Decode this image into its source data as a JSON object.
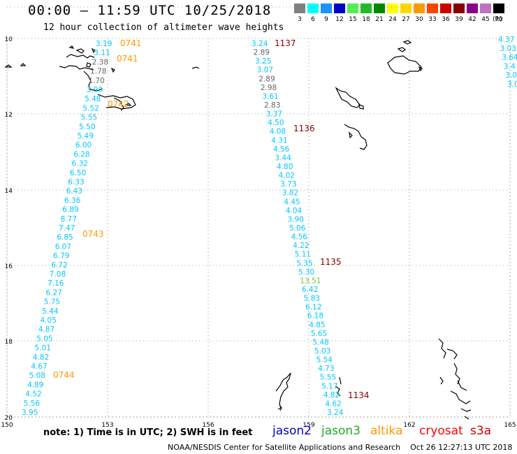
{
  "title": "00:00 — 11:59 UTC 10/25/2018",
  "subtitle": "12 hour collection of altimeter wave heights",
  "legend": {
    "unit": "(ft)",
    "items": [
      {
        "label": "3",
        "color": "#808080"
      },
      {
        "label": "6",
        "color": "#00ffff"
      },
      {
        "label": "9",
        "color": "#1e90ff"
      },
      {
        "label": "12",
        "color": "#0000cd"
      },
      {
        "label": "15",
        "color": "#55ee55"
      },
      {
        "label": "18",
        "color": "#22bb22"
      },
      {
        "label": "21",
        "color": "#008800"
      },
      {
        "label": "24",
        "color": "#ffff00"
      },
      {
        "label": "27",
        "color": "#ffd700"
      },
      {
        "label": "30",
        "color": "#ff9900"
      },
      {
        "label": "33",
        "color": "#ff4400"
      },
      {
        "label": "36",
        "color": "#cc0000"
      },
      {
        "label": "39",
        "color": "#880000"
      },
      {
        "label": "42",
        "color": "#8b008b"
      },
      {
        "label": "45",
        "color": "#c071c0"
      },
      {
        "label": "70",
        "color": "#000000"
      }
    ]
  },
  "axes": {
    "lon_labels": [
      "150",
      "153",
      "156",
      "159",
      "162",
      "165"
    ],
    "lat_labels": [
      "10",
      "12",
      "14",
      "16",
      "18",
      "20"
    ]
  },
  "passes": [
    {
      "time": "0741",
      "color": "#ff9900"
    },
    {
      "time": "0741",
      "color": "#ff9900"
    },
    {
      "time": "0742",
      "color": "#ff9900"
    },
    {
      "time": "0743",
      "color": "#ff9900"
    },
    {
      "time": "0744",
      "color": "#ff9900"
    },
    {
      "time": "1137",
      "color": "#880000"
    },
    {
      "time": "1136",
      "color": "#880000"
    },
    {
      "time": "1135",
      "color": "#880000"
    },
    {
      "time": "1134",
      "color": "#880000"
    }
  ],
  "track_a": [
    "3.19",
    "3.11",
    "2.38",
    "1.78",
    "1.70",
    "3.90",
    "5.48",
    "5.52",
    "5.55",
    "5.50",
    "5.49",
    "6.00",
    "6.28",
    "6.32",
    "6.50",
    "6.33",
    "6.43",
    "6.36",
    "6.89",
    "8.77",
    "7.47",
    "6.85",
    "6.07",
    "6.79",
    "6.72",
    "7.08",
    "7.16",
    "6.27",
    "5.75",
    "5.44",
    "4.05",
    "4.87",
    "5.05",
    "5.01",
    "4.82",
    "4.67",
    "5.08",
    "4.89",
    "4.52",
    "5.56",
    "3.95"
  ],
  "track_b": [
    "3.24",
    "2.89",
    "3.25",
    "3.07",
    "2.89",
    "2.98",
    "3.61",
    "2.83",
    "3.37",
    "4.50",
    "4.08",
    "4.31",
    "4.56",
    "3.44",
    "4.80",
    "4.02",
    "3.73",
    "3.82",
    "4.45",
    "4.04",
    "3.90",
    "5.06",
    "4.56",
    "4.22",
    "5.11",
    "5.35",
    "5.30",
    "13.51",
    "6.42",
    "5.83",
    "6.12",
    "6.18",
    "4.85",
    "5.65",
    "5.48",
    "5.03",
    "5.54",
    "4.73",
    "5.55",
    "5.17",
    "4.82",
    "4.62",
    "3.24"
  ],
  "track_c": [
    "4.37",
    "3.03",
    "3.64",
    "3.4",
    "3.0",
    "3.0"
  ],
  "note": "note: 1) Time is in UTC; 2) SWH is in feet",
  "satellites": [
    {
      "name": "jason2",
      "color": "#0000cd"
    },
    {
      "name": "jason3",
      "color": "#22aa22"
    },
    {
      "name": "altika",
      "color": "#ff9900"
    },
    {
      "name": "cryosat",
      "color": "#ff0000"
    },
    {
      "name": "s3a",
      "color": "#cc0000"
    }
  ],
  "footer": "NOAA/NESDIS Center for Satellite Applications and Research    Oct 26 12:27:13 UTC 2018"
}
